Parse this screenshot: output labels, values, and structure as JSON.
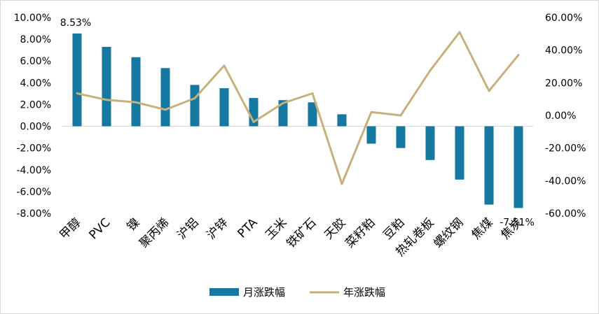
{
  "chart_data": {
    "type": "bar+line",
    "categories": [
      "甲醇",
      "PVC",
      "镍",
      "聚丙烯",
      "沪铝",
      "沪锌",
      "PTA",
      "玉米",
      "铁矿石",
      "天胶",
      "菜籽粕",
      "豆粕",
      "热轧卷板",
      "螺纹钢",
      "焦煤",
      "焦炭"
    ],
    "series": [
      {
        "name": "月涨跌幅",
        "type": "bar",
        "axis": "left",
        "unit": "%",
        "values": [
          8.53,
          7.3,
          6.35,
          5.35,
          3.8,
          3.5,
          2.6,
          2.4,
          2.2,
          1.1,
          -1.6,
          -2.0,
          -3.1,
          -4.9,
          -7.2,
          -7.51
        ]
      },
      {
        "name": "年涨跌幅",
        "type": "line",
        "axis": "right",
        "unit": "%",
        "values": [
          13.5,
          9.5,
          8.0,
          3.5,
          10.5,
          30.5,
          -4.0,
          7.5,
          13.5,
          -42.0,
          2.0,
          0.0,
          27.5,
          51.0,
          15.0,
          37.0
        ]
      }
    ],
    "y_left": {
      "min": -8,
      "max": 10,
      "step": 2,
      "tick_labels": [
        "-8.00%",
        "-6.00%",
        "-4.00%",
        "-2.00%",
        "0.00%",
        "2.00%",
        "4.00%",
        "6.00%",
        "8.00%",
        "10.00%"
      ]
    },
    "y_right": {
      "min": -60,
      "max": 60,
      "step": 20,
      "tick_labels": [
        "-60.00%",
        "-40.00%",
        "-20.00%",
        "0.00%",
        "20.00%",
        "40.00%",
        "60.00%"
      ]
    },
    "data_labels": [
      {
        "category_index": 0,
        "text": "8.53%"
      },
      {
        "category_index": 15,
        "text": "-7.51%"
      }
    ],
    "legend_position": "bottom",
    "grid": false,
    "colors": {
      "bar": "#1478a0",
      "line": "#c8b07a"
    }
  }
}
